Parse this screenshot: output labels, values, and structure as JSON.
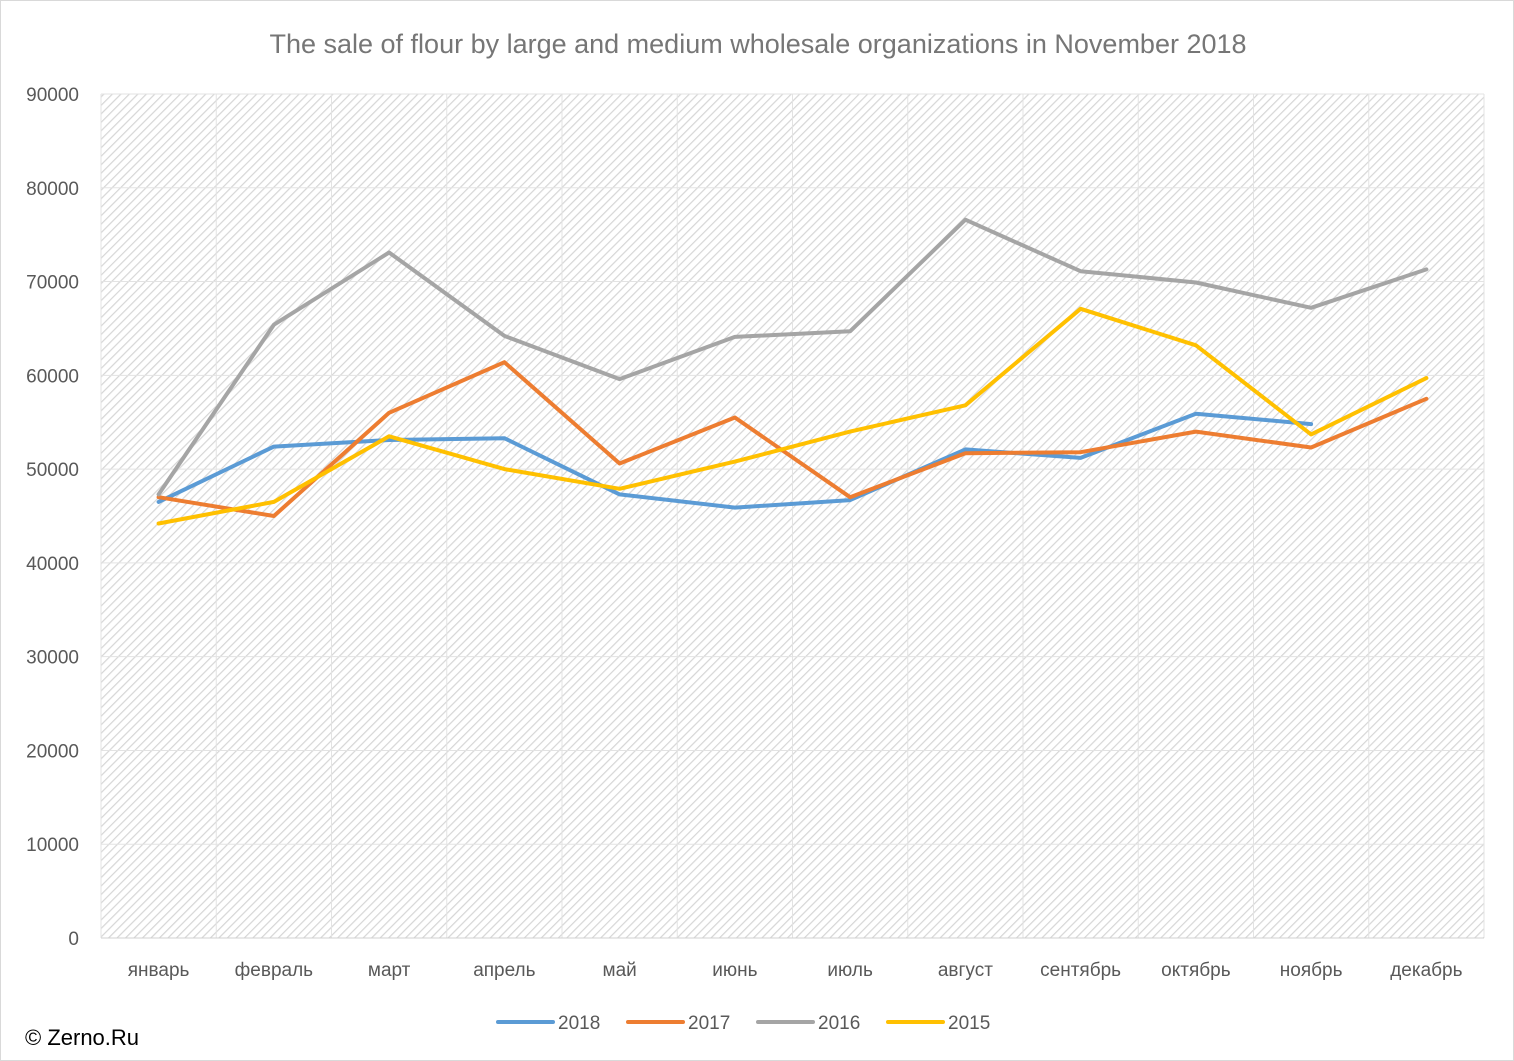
{
  "chart_data": {
    "type": "line",
    "title": "The sale of flour by large and medium wholesale organizations in November 2018",
    "xlabel": "",
    "ylabel": "",
    "ylim": [
      0,
      90000
    ],
    "ytick_step": 10000,
    "grid": true,
    "legend_position": "bottom",
    "categories": [
      "январь",
      "февраль",
      "март",
      "апрель",
      "май",
      "июнь",
      "июль",
      "август",
      "сентябрь",
      "октябрь",
      "ноябрь",
      "декабрь"
    ],
    "series": [
      {
        "name": "2018",
        "color": "#5B9BD5",
        "values": [
          46500,
          52400,
          53100,
          53300,
          47300,
          45900,
          46700,
          52100,
          51200,
          55900,
          54800,
          null
        ]
      },
      {
        "name": "2017",
        "color": "#ED7D31",
        "values": [
          47000,
          45000,
          56000,
          61400,
          50600,
          55500,
          47000,
          51700,
          51800,
          54000,
          52300,
          57500
        ]
      },
      {
        "name": "2016",
        "color": "#A5A5A5",
        "values": [
          47300,
          65400,
          73100,
          64200,
          59600,
          64100,
          64700,
          76600,
          71100,
          69900,
          67200,
          71300
        ]
      },
      {
        "name": "2015",
        "color": "#FFC000",
        "values": [
          44200,
          46500,
          53500,
          50000,
          47900,
          50800,
          54000,
          56800,
          67100,
          63200,
          53700,
          59700
        ]
      }
    ]
  },
  "copyright": "© Zerno.Ru"
}
